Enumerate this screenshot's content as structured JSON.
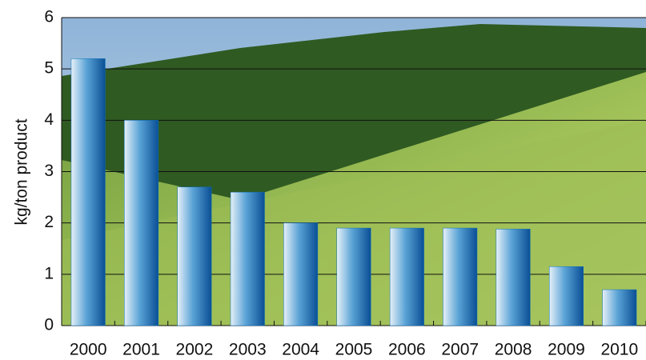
{
  "chart_data": {
    "type": "bar",
    "y_label": "kg/ton product",
    "categories": [
      "2000",
      "2001",
      "2002",
      "2003",
      "2004",
      "2005",
      "2006",
      "2007",
      "2008",
      "2009",
      "2010"
    ],
    "values": [
      5.2,
      4.0,
      2.7,
      2.6,
      2.0,
      1.9,
      1.9,
      1.9,
      1.88,
      1.15,
      0.7
    ],
    "color": "#0a6fb8",
    "ylim": [
      0,
      6
    ],
    "yticks": [
      0,
      1,
      2,
      3,
      4,
      5,
      6
    ],
    "grid": true
  }
}
